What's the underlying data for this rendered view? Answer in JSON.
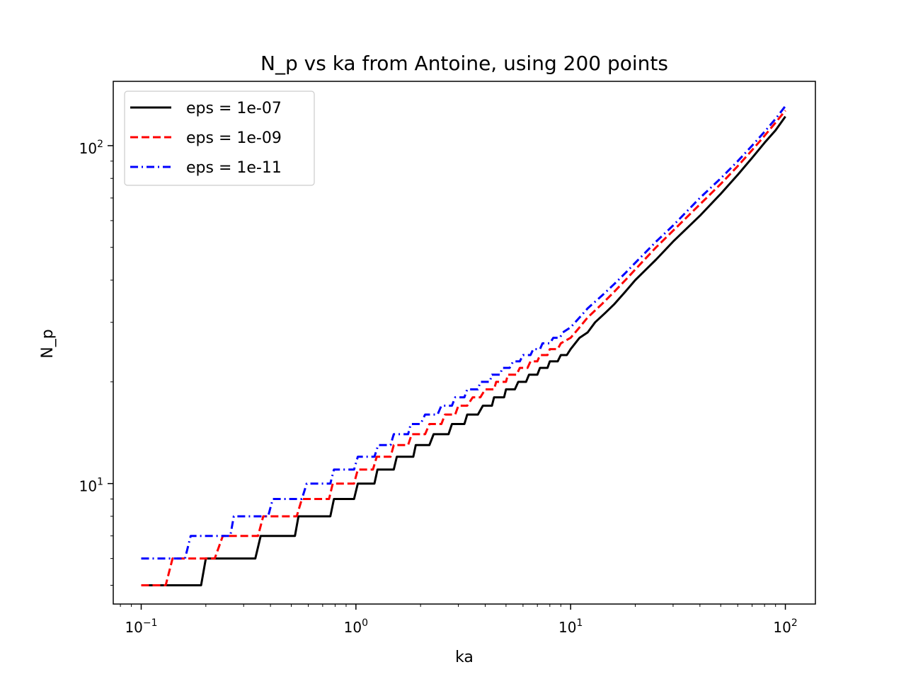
{
  "chart_data": {
    "type": "line",
    "title": "N_p vs ka from Antoine, using 200 points",
    "xlabel": "ka",
    "ylabel": "N_p",
    "xscale": "log",
    "yscale": "log",
    "xlim": [
      0.0741,
      138
    ],
    "ylim": [
      4.4,
      155
    ],
    "x_major_ticks": [
      {
        "value": 0.1,
        "base": "10",
        "exp": "−1"
      },
      {
        "value": 1,
        "base": "10",
        "exp": "0"
      },
      {
        "value": 10,
        "base": "10",
        "exp": "1"
      },
      {
        "value": 100,
        "base": "10",
        "exp": "2"
      }
    ],
    "y_major_ticks": [
      {
        "value": 10,
        "base": "10",
        "exp": "1"
      },
      {
        "value": 100,
        "base": "10",
        "exp": "2"
      }
    ],
    "grid": false,
    "legend_position": "top-left",
    "series": [
      {
        "name": "eps = 1e-07",
        "color": "#000000",
        "dash": "solid",
        "points": [
          [
            0.1,
            5
          ],
          [
            0.19,
            5
          ],
          [
            0.2,
            6
          ],
          [
            0.34,
            6
          ],
          [
            0.36,
            7
          ],
          [
            0.52,
            7
          ],
          [
            0.54,
            8
          ],
          [
            0.76,
            8
          ],
          [
            0.79,
            9
          ],
          [
            0.98,
            9
          ],
          [
            1.02,
            10
          ],
          [
            1.22,
            10
          ],
          [
            1.26,
            11
          ],
          [
            1.5,
            11
          ],
          [
            1.55,
            12
          ],
          [
            1.85,
            12
          ],
          [
            1.9,
            13
          ],
          [
            2.2,
            13
          ],
          [
            2.3,
            14
          ],
          [
            2.7,
            14
          ],
          [
            2.8,
            15
          ],
          [
            3.2,
            15
          ],
          [
            3.3,
            16
          ],
          [
            3.7,
            16
          ],
          [
            3.9,
            17
          ],
          [
            4.3,
            17
          ],
          [
            4.4,
            18
          ],
          [
            4.9,
            18
          ],
          [
            5.0,
            19
          ],
          [
            5.5,
            19
          ],
          [
            5.7,
            20
          ],
          [
            6.2,
            20
          ],
          [
            6.4,
            21
          ],
          [
            7.0,
            21
          ],
          [
            7.2,
            22
          ],
          [
            7.8,
            22
          ],
          [
            8.0,
            23
          ],
          [
            8.7,
            23
          ],
          [
            9.0,
            24
          ],
          [
            9.6,
            24
          ],
          [
            10.0,
            25
          ],
          [
            11.0,
            27
          ],
          [
            12.0,
            28
          ],
          [
            13.0,
            30
          ],
          [
            14.5,
            32
          ],
          [
            16.0,
            34
          ],
          [
            18.0,
            37
          ],
          [
            20.0,
            40
          ],
          [
            25.0,
            46
          ],
          [
            30.0,
            52
          ],
          [
            40.0,
            62
          ],
          [
            50.0,
            72
          ],
          [
            60.0,
            82
          ],
          [
            70.0,
            92
          ],
          [
            80.0,
            102
          ],
          [
            90.0,
            111
          ],
          [
            100.0,
            122
          ]
        ]
      },
      {
        "name": "eps = 1e-09",
        "color": "#ff0000",
        "dash": "dashed",
        "points": [
          [
            0.1,
            5
          ],
          [
            0.13,
            5
          ],
          [
            0.14,
            6
          ],
          [
            0.22,
            6
          ],
          [
            0.24,
            7
          ],
          [
            0.35,
            7
          ],
          [
            0.37,
            8
          ],
          [
            0.53,
            8
          ],
          [
            0.56,
            9
          ],
          [
            0.75,
            9
          ],
          [
            0.78,
            10
          ],
          [
            0.98,
            10
          ],
          [
            1.02,
            11
          ],
          [
            1.2,
            11
          ],
          [
            1.25,
            12
          ],
          [
            1.45,
            12
          ],
          [
            1.5,
            13
          ],
          [
            1.75,
            13
          ],
          [
            1.82,
            14
          ],
          [
            2.1,
            14
          ],
          [
            2.2,
            15
          ],
          [
            2.5,
            15
          ],
          [
            2.6,
            16
          ],
          [
            2.9,
            16
          ],
          [
            3.0,
            17
          ],
          [
            3.3,
            17
          ],
          [
            3.5,
            18
          ],
          [
            3.8,
            18
          ],
          [
            4.0,
            19
          ],
          [
            4.4,
            19
          ],
          [
            4.5,
            20
          ],
          [
            5.0,
            20
          ],
          [
            5.1,
            21
          ],
          [
            5.6,
            21
          ],
          [
            5.8,
            22
          ],
          [
            6.3,
            22
          ],
          [
            6.5,
            23
          ],
          [
            7.0,
            23
          ],
          [
            7.2,
            24
          ],
          [
            7.8,
            24
          ],
          [
            8.0,
            25
          ],
          [
            8.7,
            25
          ],
          [
            9.0,
            26
          ],
          [
            10.0,
            27
          ],
          [
            11.0,
            29
          ],
          [
            12.0,
            31
          ],
          [
            14.0,
            34
          ],
          [
            16.0,
            37
          ],
          [
            18.0,
            40
          ],
          [
            20.0,
            43
          ],
          [
            25.0,
            50
          ],
          [
            30.0,
            56
          ],
          [
            40.0,
            67
          ],
          [
            50.0,
            77
          ],
          [
            60.0,
            87
          ],
          [
            70.0,
            97
          ],
          [
            80.0,
            107
          ],
          [
            90.0,
            117
          ],
          [
            100.0,
            127
          ]
        ]
      },
      {
        "name": "eps = 1e-11",
        "color": "#0000ff",
        "dash": "dashdot",
        "points": [
          [
            0.1,
            6
          ],
          [
            0.16,
            6
          ],
          [
            0.17,
            7
          ],
          [
            0.26,
            7
          ],
          [
            0.27,
            8
          ],
          [
            0.39,
            8
          ],
          [
            0.41,
            9
          ],
          [
            0.56,
            9
          ],
          [
            0.59,
            10
          ],
          [
            0.76,
            10
          ],
          [
            0.79,
            11
          ],
          [
            0.98,
            11
          ],
          [
            1.02,
            12
          ],
          [
            1.22,
            12
          ],
          [
            1.27,
            13
          ],
          [
            1.45,
            13
          ],
          [
            1.5,
            14
          ],
          [
            1.75,
            14
          ],
          [
            1.8,
            15
          ],
          [
            2.0,
            15
          ],
          [
            2.1,
            16
          ],
          [
            2.4,
            16
          ],
          [
            2.5,
            17
          ],
          [
            2.8,
            17
          ],
          [
            2.9,
            18
          ],
          [
            3.2,
            18
          ],
          [
            3.3,
            19
          ],
          [
            3.7,
            19
          ],
          [
            3.8,
            20
          ],
          [
            4.2,
            20
          ],
          [
            4.3,
            21
          ],
          [
            4.7,
            21
          ],
          [
            4.8,
            22
          ],
          [
            5.2,
            22
          ],
          [
            5.4,
            23
          ],
          [
            5.8,
            23
          ],
          [
            6.0,
            24
          ],
          [
            6.5,
            24
          ],
          [
            6.7,
            25
          ],
          [
            7.2,
            25
          ],
          [
            7.4,
            26
          ],
          [
            8.0,
            26
          ],
          [
            8.3,
            27
          ],
          [
            8.9,
            27
          ],
          [
            9.2,
            28
          ],
          [
            10.0,
            29
          ],
          [
            11.0,
            31
          ],
          [
            12.0,
            33
          ],
          [
            14.0,
            36
          ],
          [
            16.0,
            39
          ],
          [
            18.0,
            42
          ],
          [
            20.0,
            45
          ],
          [
            25.0,
            52
          ],
          [
            30.0,
            58
          ],
          [
            40.0,
            70
          ],
          [
            50.0,
            80
          ],
          [
            60.0,
            90
          ],
          [
            70.0,
            100
          ],
          [
            80.0,
            110
          ],
          [
            90.0,
            120
          ],
          [
            100.0,
            131
          ]
        ]
      }
    ]
  }
}
